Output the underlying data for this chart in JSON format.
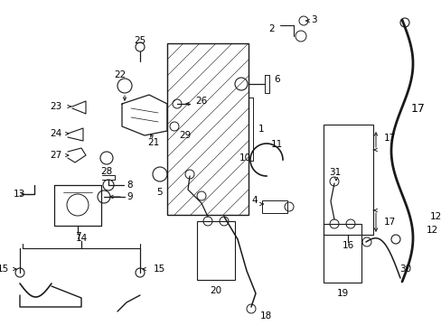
{
  "background_color": "#ffffff",
  "line_color": "#1a1a1a",
  "text_color": "#000000",
  "font_size": 7.5,
  "fig_width": 4.89,
  "fig_height": 3.6,
  "dpi": 100
}
